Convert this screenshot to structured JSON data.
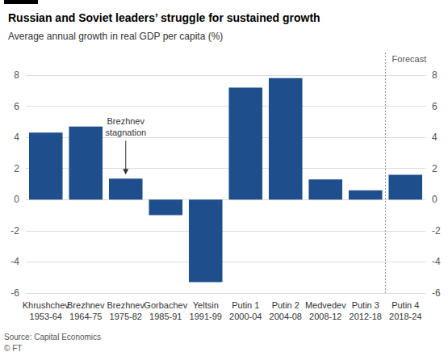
{
  "chart_data": {
    "type": "bar",
    "title": "Russian and Soviet leaders’ struggle for sustained growth",
    "subtitle": "Average annual growth in real GDP per capita (%)",
    "categories": [
      "Khrushchev\n1953-64",
      "Brezhnev\n1964-75",
      "Brezhnev\n1975-82",
      "Gorbachev\n1985-91",
      "Yeltsin\n1991-99",
      "Putin 1\n2000-04",
      "Putin 2\n2004-08",
      "Medvedev\n2008-12",
      "Putin 3\n2012-18",
      "Putin 4\n2018-24"
    ],
    "values": [
      4.3,
      4.7,
      1.35,
      -1.0,
      -5.3,
      7.2,
      7.8,
      1.3,
      0.6,
      1.6
    ],
    "color": "#1f4e8c",
    "ylim": [
      -6,
      8
    ],
    "yticks": [
      -6,
      -4,
      -2,
      0,
      2,
      4,
      6,
      8
    ],
    "grid": true,
    "annotations": [
      {
        "text": "Brezhnev stagnation",
        "category": "Brezhnev\n1975-82"
      },
      {
        "text": "Forecast",
        "category": "Putin 4\n2018-24",
        "line_style": "dashed"
      }
    ],
    "source": "Source: Capital Economics",
    "credit": "© FT"
  }
}
